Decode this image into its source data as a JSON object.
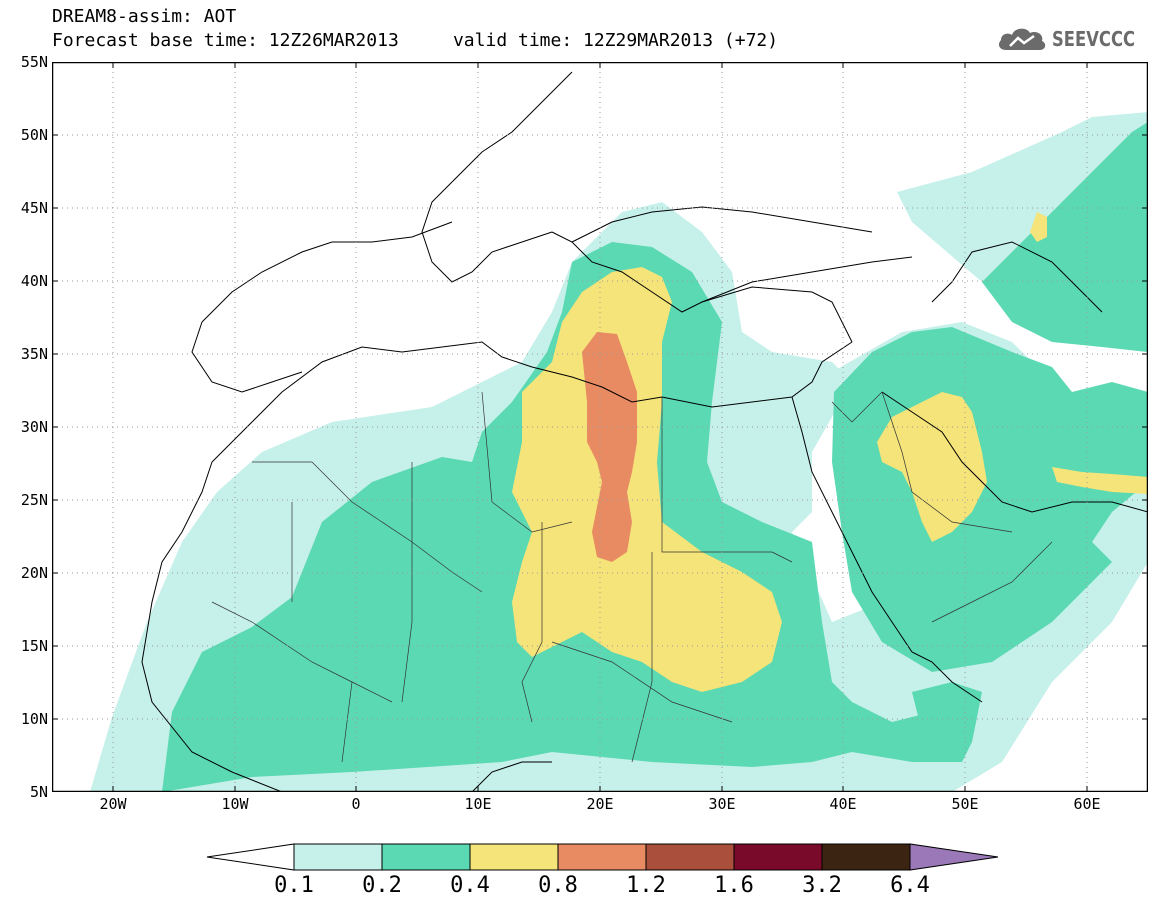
{
  "header": {
    "line1": "DREAM8-assim: AOT",
    "line2": "Forecast base time: 12Z26MAR2013     valid time: 12Z29MAR2013 (+72)"
  },
  "logo": {
    "text": "SEEVCCC",
    "icon": "cloud-icon",
    "color": "#6b6b6b"
  },
  "map": {
    "extent": {
      "lon_min": -25,
      "lon_max": 65,
      "lat_min": 5,
      "lat_max": 55
    },
    "y_ticks": [
      {
        "label": "55N",
        "lat": 55
      },
      {
        "label": "50N",
        "lat": 50
      },
      {
        "label": "45N",
        "lat": 45
      },
      {
        "label": "40N",
        "lat": 40
      },
      {
        "label": "35N",
        "lat": 35
      },
      {
        "label": "30N",
        "lat": 30
      },
      {
        "label": "25N",
        "lat": 25
      },
      {
        "label": "20N",
        "lat": 20
      },
      {
        "label": "15N",
        "lat": 15
      },
      {
        "label": "10N",
        "lat": 10
      },
      {
        "label": "5N",
        "lat": 5
      }
    ],
    "x_ticks": [
      {
        "label": "20W",
        "lon": -20
      },
      {
        "label": "10W",
        "lon": -10
      },
      {
        "label": "0",
        "lon": 0
      },
      {
        "label": "10E",
        "lon": 10
      },
      {
        "label": "20E",
        "lon": 20
      },
      {
        "label": "30E",
        "lon": 30
      },
      {
        "label": "40E",
        "lon": 40
      },
      {
        "label": "50E",
        "lon": 50
      },
      {
        "label": "60E",
        "lon": 60
      }
    ],
    "grid": true
  },
  "colorbar": {
    "levels": [
      "0.1",
      "0.2",
      "0.4",
      "0.8",
      "1.2",
      "1.6",
      "3.2",
      "6.4"
    ],
    "colors": {
      "below": "#ffffff",
      "c1": "#c6f0ea",
      "c2": "#5ad9b2",
      "c3": "#f5e47a",
      "c4": "#e88a62",
      "c5": "#aa4f3c",
      "c6": "#7a0a2a",
      "c7": "#3b2412",
      "above": "#9b78b8"
    }
  }
}
